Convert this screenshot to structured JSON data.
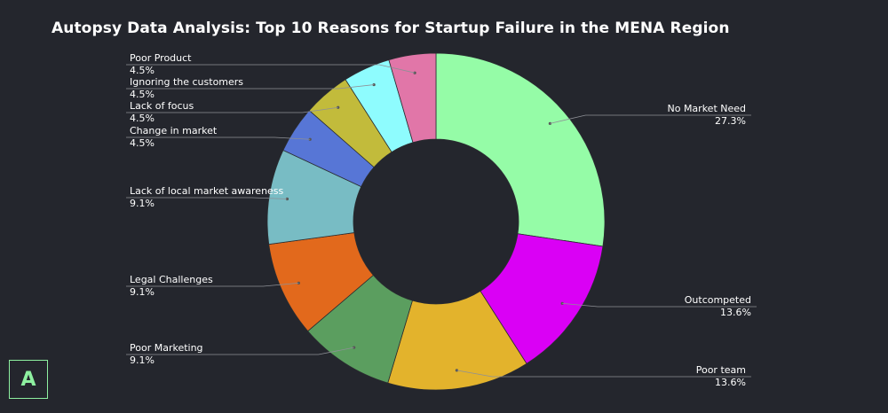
{
  "title": "Autopsy Data Analysis: Top 10 Reasons for Startup Failure in the MENA Region",
  "logo_letter": "A",
  "colors": {
    "background": "#24262d",
    "logo": "#8ef0a0",
    "text": "#ffffff"
  },
  "chart_data": {
    "type": "pie",
    "variant": "donut",
    "title": "Autopsy Data Analysis: Top 10 Reasons for Startup Failure in the MENA Region",
    "start": "top",
    "direction": "clockwise",
    "slices": [
      {
        "label": "No Market Need",
        "value": 27.3,
        "display": "27.3%",
        "color": "#95fca7",
        "side": "right"
      },
      {
        "label": "Outcompeted",
        "value": 13.6,
        "display": "13.6%",
        "color": "#da00f5",
        "side": "right"
      },
      {
        "label": "Poor team",
        "value": 13.6,
        "display": "13.6%",
        "color": "#e3b32c",
        "side": "right"
      },
      {
        "label": "Poor Marketing",
        "value": 9.1,
        "display": "9.1%",
        "color": "#5b9e5f",
        "side": "left"
      },
      {
        "label": "Legal Challenges",
        "value": 9.1,
        "display": "9.1%",
        "color": "#e2691c",
        "side": "left"
      },
      {
        "label": "Lack of local market awareness",
        "value": 9.1,
        "display": "9.1%",
        "color": "#78bcc4",
        "side": "left"
      },
      {
        "label": "Change in market",
        "value": 4.5,
        "display": "4.5%",
        "color": "#5776d6",
        "side": "left"
      },
      {
        "label": "Lack of focus",
        "value": 4.5,
        "display": "4.5%",
        "color": "#c2bb3b",
        "side": "left"
      },
      {
        "label": "Ignoring the customers",
        "value": 4.5,
        "display": "4.5%",
        "color": "#8efcfe",
        "side": "left"
      },
      {
        "label": "Poor Product",
        "value": 4.5,
        "display": "4.5%",
        "color": "#e176a8",
        "side": "left"
      }
    ]
  }
}
